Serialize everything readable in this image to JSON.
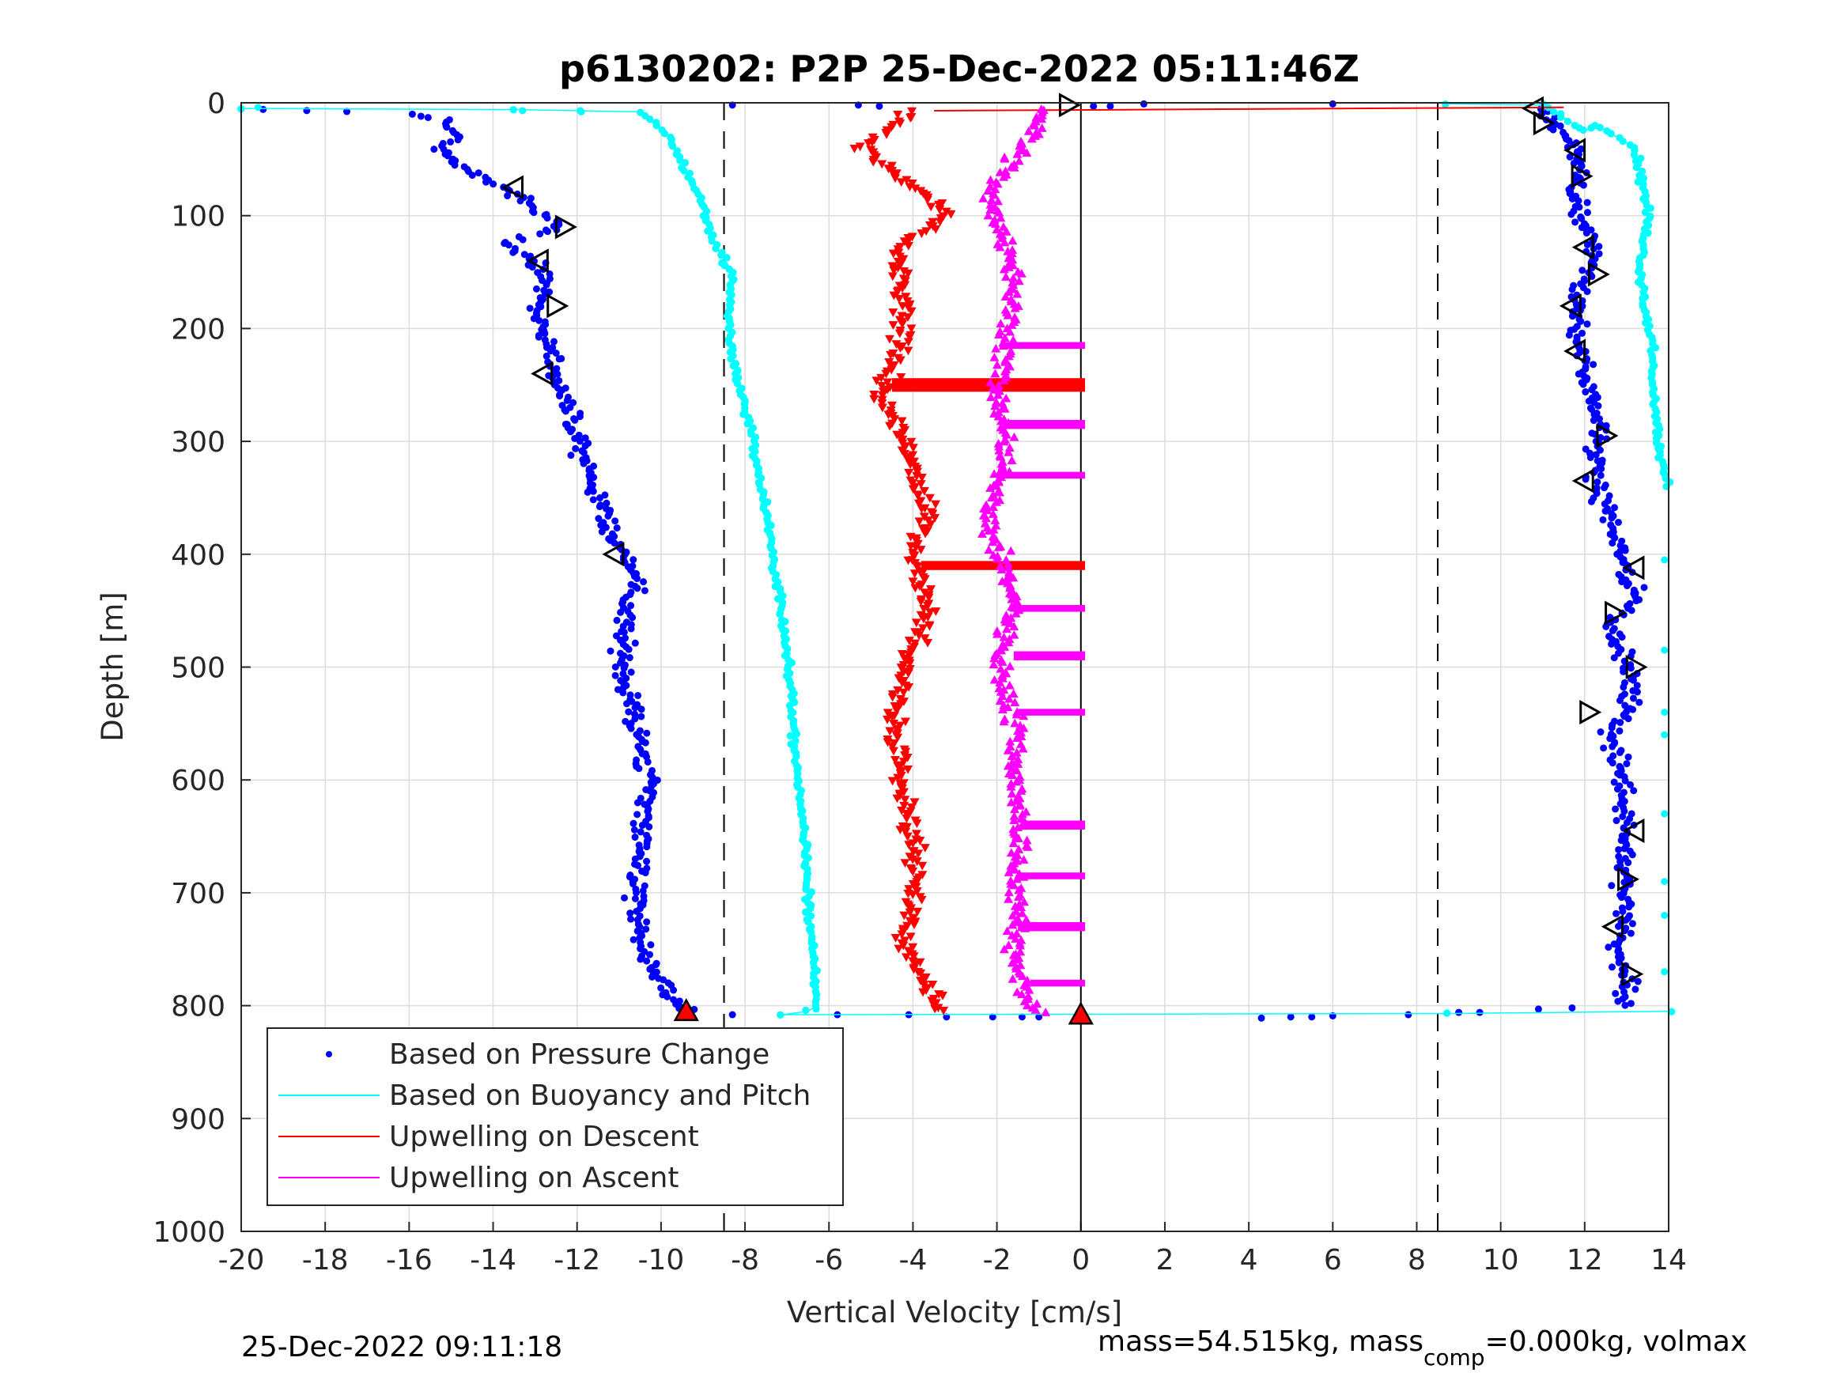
{
  "chart_data": {
    "type": "scatter",
    "title": "p6130202: P2P 25-Dec-2022 05:11:46Z",
    "xlabel": "Vertical Velocity [cm/s]",
    "ylabel": "Depth [m]",
    "xlim": [
      -20,
      14
    ],
    "ylim": [
      0,
      1000
    ],
    "y_reversed": true,
    "grid": true,
    "xticks": [
      "-20",
      "-18",
      "-16",
      "-14",
      "-12",
      "-10",
      "-8",
      "-6",
      "-4",
      "-2",
      "0",
      "2",
      "4",
      "6",
      "8",
      "10",
      "12",
      "14"
    ],
    "yticks": [
      "0",
      "100",
      "200",
      "300",
      "400",
      "500",
      "600",
      "700",
      "800",
      "900",
      "1000"
    ],
    "reference_lines": {
      "dashed_x": [
        -8.5,
        8.5
      ],
      "solid_x": [
        0
      ]
    },
    "legend_placement": "bottom-left",
    "series": [
      {
        "name": "Based on Pressure Change",
        "color": "#0000ff",
        "marker": "dot",
        "segments": [
          {
            "x": [
              -19.5,
              -17.5,
              -16,
              -15.2,
              -14.8,
              -15.3,
              -14.8,
              -14.1,
              -13.5,
              -13.0,
              -12.5,
              -12.8,
              -13.6,
              -13.1,
              -12.7,
              -12.9,
              -12.8,
              -12.3,
              -12.1,
              -11.6,
              -11.2,
              -10.9,
              -10.5,
              -10.9,
              -10.9,
              -10.6,
              -10.3,
              -10.4,
              -10.6,
              -10.5,
              -10.2,
              -9.8,
              -9.5,
              -9.4
            ],
            "y": [
              5,
              8,
              10,
              15,
              30,
              40,
              55,
              70,
              80,
              95,
              110,
              115,
              125,
              140,
              160,
              180,
              210,
              260,
              290,
              340,
              380,
              400,
              420,
              450,
              500,
              550,
              600,
              650,
              700,
              740,
              770,
              790,
              800,
              805
            ]
          },
          {
            "x": [
              10.8,
              11.2,
              11.5,
              11.8,
              11.9,
              11.7,
              11.8,
              12.1,
              12.3,
              11.9,
              11.8,
              11.9,
              12.2,
              12.4,
              12.2,
              12.6,
              13.0,
              13.2,
              12.7,
              13.0,
              13.1,
              12.6,
              12.9,
              13.0,
              12.9,
              13.0,
              12.8,
              12.9,
              13.0,
              12.9,
              13.0
            ],
            "y": [
              5,
              15,
              30,
              45,
              60,
              75,
              95,
              120,
              140,
              160,
              180,
              220,
              260,
              290,
              330,
              370,
              410,
              440,
              460,
              500,
              530,
              560,
              600,
              640,
              680,
              720,
              750,
              770,
              780,
              790,
              800
            ]
          }
        ],
        "scatter": [
          {
            "x": -8.3,
            "y": 808
          },
          {
            "x": -5.8,
            "y": 808
          },
          {
            "x": -4.1,
            "y": 808
          },
          {
            "x": -3.2,
            "y": 810
          },
          {
            "x": -2.1,
            "y": 810
          },
          {
            "x": -1.4,
            "y": 810
          },
          {
            "x": -1.0,
            "y": 810
          },
          {
            "x": 4.3,
            "y": 811
          },
          {
            "x": 5.0,
            "y": 810
          },
          {
            "x": 5.5,
            "y": 810
          },
          {
            "x": 6.0,
            "y": 809
          },
          {
            "x": 7.8,
            "y": 808
          },
          {
            "x": 9.0,
            "y": 806
          },
          {
            "x": 9.5,
            "y": 806
          },
          {
            "x": 10.9,
            "y": 803
          },
          {
            "x": 11.7,
            "y": 802
          },
          {
            "x": -8.3,
            "y": 2
          },
          {
            "x": -5.3,
            "y": 2
          },
          {
            "x": -4.8,
            "y": 3
          },
          {
            "x": 0.3,
            "y": 3
          },
          {
            "x": 0.7,
            "y": 3
          },
          {
            "x": 1.5,
            "y": 1
          },
          {
            "x": 6.0,
            "y": 1
          }
        ]
      },
      {
        "name": "Based on Buoyancy and Pitch",
        "color": "#00ffff",
        "marker": "line",
        "segments": [
          {
            "x": [
              -20,
              -13.5,
              -12,
              -10.5,
              -9.8,
              -9.4,
              -9.0,
              -8.8,
              -8.3,
              -8.4,
              -8.2,
              -7.8,
              -7.5,
              -7.3,
              -7.1,
              -6.9,
              -6.8,
              -6.6,
              -6.5,
              -6.4,
              -6.3,
              -6.3,
              -6.5,
              -7.1,
              8.7,
              14
            ],
            "y": [
              5,
              6,
              7,
              8,
              30,
              60,
              90,
              120,
              150,
              200,
              240,
              300,
              360,
              410,
              460,
              520,
              580,
              640,
              700,
              750,
              790,
              800,
              805,
              808,
              807,
              805
            ]
          },
          {
            "x": [
              8.7,
              11,
              12.0,
              12.3,
              13.2,
              13.5,
              13.3,
              13.6,
              13.7,
              13.9,
              14
            ],
            "y": [
              1,
              2,
              25,
              20,
              40,
              100,
              150,
              220,
              280,
              330,
              340
            ]
          }
        ],
        "scatter": [
          {
            "x": -19.6,
            "y": 4
          },
          {
            "x": -13.3,
            "y": 7
          },
          {
            "x": -11.9,
            "y": 8
          },
          {
            "x": 13.9,
            "y": 405
          },
          {
            "x": 13.9,
            "y": 485
          },
          {
            "x": 13.9,
            "y": 540
          },
          {
            "x": 13.9,
            "y": 560
          },
          {
            "x": 13.9,
            "y": 630
          },
          {
            "x": 13.9,
            "y": 690
          },
          {
            "x": 13.9,
            "y": 720
          },
          {
            "x": 13.9,
            "y": 770
          }
        ]
      },
      {
        "name": "Upwelling on Descent",
        "color": "#ff0000",
        "marker": "triangle-down",
        "segments": [
          {
            "x": [
              -4.0,
              -5.2,
              -4.5,
              -3.8,
              -3.2,
              -4.4,
              -4.3,
              -4.3,
              -4.8,
              -4.2,
              -3.9,
              -3.6,
              -4.0,
              -3.8,
              -3.6,
              -4.2,
              -4.4,
              -4.2,
              -3.9,
              -4.0,
              -4.2,
              -3.9,
              -3.6,
              -3.3
            ],
            "y": [
              8,
              40,
              60,
              80,
              100,
              130,
              170,
              220,
              260,
              300,
              330,
              370,
              400,
              420,
              450,
              500,
              560,
              620,
              660,
              700,
              740,
              770,
              790,
              805
            ]
          }
        ],
        "bands": [
          {
            "y": 250,
            "x_from": -4.5,
            "x_to": 0.1,
            "height": 12
          },
          {
            "y": 410,
            "x_from": -3.8,
            "x_to": 0.1,
            "height": 8
          }
        ],
        "extra_lines": [
          {
            "x1": -3.5,
            "y1": 7,
            "x2": 11.5,
            "y2": 4
          }
        ]
      },
      {
        "name": "Upwelling on Ascent",
        "color": "#ff00ff",
        "marker": "triangle-up",
        "segments": [
          {
            "x": [
              -0.8,
              -1.2,
              -1.8,
              -2.2,
              -1.9,
              -1.6,
              -1.7,
              -2.0,
              -1.8,
              -1.9,
              -2.2,
              -1.7,
              -1.6,
              -2.0,
              -1.8,
              -1.5,
              -1.6,
              -1.4,
              -1.6,
              -1.5,
              -1.6,
              -1.4,
              -1.2,
              -1.0
            ],
            "y": [
              5,
              30,
              60,
              80,
              110,
              150,
              200,
              250,
              290,
              330,
              380,
              420,
              450,
              490,
              520,
              560,
              600,
              640,
              680,
              720,
              750,
              780,
              800,
              805
            ]
          }
        ],
        "bands": [
          {
            "y": 215,
            "x_from": -1.8,
            "x_to": 0.1,
            "height": 6
          },
          {
            "y": 285,
            "x_from": -1.8,
            "x_to": 0.1,
            "height": 8
          },
          {
            "y": 330,
            "x_from": -1.9,
            "x_to": 0.1,
            "height": 6
          },
          {
            "y": 448,
            "x_from": -1.7,
            "x_to": 0.1,
            "height": 6
          },
          {
            "y": 490,
            "x_from": -1.6,
            "x_to": 0.1,
            "height": 8
          },
          {
            "y": 540,
            "x_from": -1.5,
            "x_to": 0.1,
            "height": 6
          },
          {
            "y": 640,
            "x_from": -1.4,
            "x_to": 0.1,
            "height": 8
          },
          {
            "y": 685,
            "x_from": -1.5,
            "x_to": 0.1,
            "height": 6
          },
          {
            "y": 730,
            "x_from": -1.5,
            "x_to": 0.1,
            "height": 8
          },
          {
            "y": 780,
            "x_from": -1.2,
            "x_to": 0.1,
            "height": 6
          }
        ]
      }
    ],
    "annotation_markers": [
      {
        "shape": "triangle-left",
        "x": -13.5,
        "y": 75
      },
      {
        "shape": "triangle-right",
        "x": -12.3,
        "y": 110
      },
      {
        "shape": "triangle-left",
        "x": -12.9,
        "y": 140
      },
      {
        "shape": "triangle-right",
        "x": -12.5,
        "y": 180
      },
      {
        "shape": "triangle-left",
        "x": -12.8,
        "y": 240
      },
      {
        "shape": "triangle-left",
        "x": -11.1,
        "y": 400
      },
      {
        "shape": "triangle-right",
        "x": -0.3,
        "y": 2
      },
      {
        "shape": "triangle-left",
        "x": 10.8,
        "y": 5
      },
      {
        "shape": "triangle-right",
        "x": 11.0,
        "y": 18
      },
      {
        "shape": "triangle-left",
        "x": 11.8,
        "y": 42
      },
      {
        "shape": "triangle-right",
        "x": 11.9,
        "y": 65
      },
      {
        "shape": "triangle-left",
        "x": 12.0,
        "y": 128
      },
      {
        "shape": "triangle-right",
        "x": 12.3,
        "y": 152
      },
      {
        "shape": "triangle-left",
        "x": 11.7,
        "y": 180
      },
      {
        "shape": "triangle-left",
        "x": 11.8,
        "y": 220
      },
      {
        "shape": "triangle-right",
        "x": 12.5,
        "y": 295
      },
      {
        "shape": "triangle-left",
        "x": 12.0,
        "y": 335
      },
      {
        "shape": "triangle-left",
        "x": 13.2,
        "y": 412
      },
      {
        "shape": "triangle-right",
        "x": 12.7,
        "y": 452
      },
      {
        "shape": "triangle-right",
        "x": 13.2,
        "y": 500
      },
      {
        "shape": "triangle-right",
        "x": 12.1,
        "y": 540
      },
      {
        "shape": "triangle-left",
        "x": 13.2,
        "y": 645
      },
      {
        "shape": "triangle-right",
        "x": 13.0,
        "y": 688
      },
      {
        "shape": "triangle-left",
        "x": 12.7,
        "y": 730
      },
      {
        "shape": "triangle-right",
        "x": 13.1,
        "y": 772
      },
      {
        "shape": "triangle-up-red",
        "x": -9.4,
        "y": 805
      },
      {
        "shape": "triangle-up-red",
        "x": 0.0,
        "y": 808
      }
    ]
  },
  "footer": {
    "timestamp": "25-Dec-2022 09:11:18",
    "mass_text": "mass=54.515kg, mass",
    "mass_sub": "comp",
    "mass_tail": "=0.000kg, volmax"
  }
}
